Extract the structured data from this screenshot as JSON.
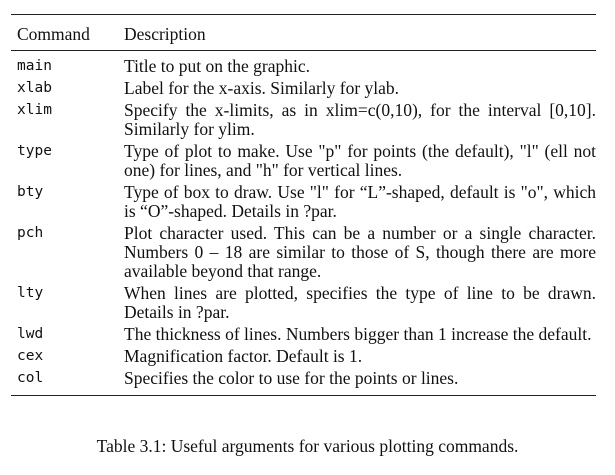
{
  "table": {
    "headers": [
      "Command",
      "Description"
    ],
    "rows": [
      {
        "command": "main",
        "description": "Title to put on the graphic."
      },
      {
        "command": "xlab",
        "description": "Label for the x-axis. Similarly for ylab."
      },
      {
        "command": "xlim",
        "description": "Specify the x-limits, as in xlim=c(0,10), for the interval [0,10]. Similarly for ylim."
      },
      {
        "command": "type",
        "description": "Type of plot to make. Use \"p\" for points (the default), \"l\" (ell not one) for lines, and \"h\" for vertical lines."
      },
      {
        "command": "bty",
        "description": "Type of box to draw. Use \"l\" for “L”-shaped, default is \"o\", which is “O”-shaped. Details in ?par."
      },
      {
        "command": "pch",
        "description": "Plot character used. This can be a number or a single character. Numbers 0 – 18 are similar to those of S, though there are more available beyond that range."
      },
      {
        "command": "lty",
        "description": "When lines are plotted, specifies the type of line to be drawn. Details in ?par."
      },
      {
        "command": "lwd",
        "description": "The thickness of lines. Numbers bigger than 1 increase the default."
      },
      {
        "command": "cex",
        "description": "Magnification factor. Default is 1."
      },
      {
        "command": "col",
        "description": "Specifies the color to use for the points or lines."
      }
    ]
  },
  "caption": "Table 3.1: Useful arguments for various plotting commands."
}
